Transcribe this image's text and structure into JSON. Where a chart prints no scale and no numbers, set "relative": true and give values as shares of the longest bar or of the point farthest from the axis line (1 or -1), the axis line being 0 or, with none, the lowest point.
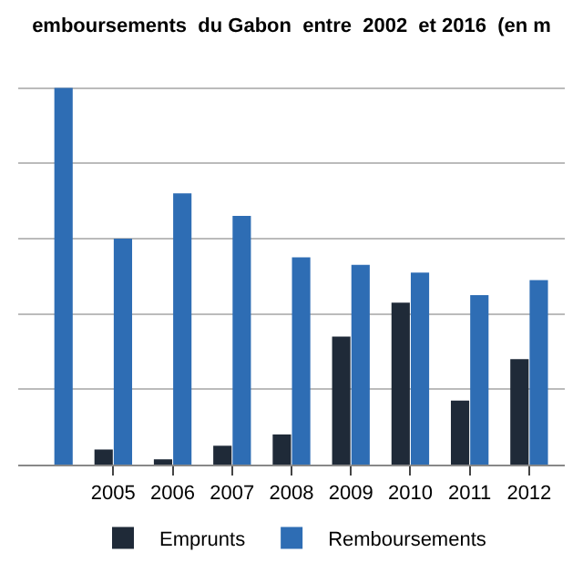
{
  "chart_data": {
    "type": "bar",
    "title": "emboursements  du Gabon  entre  2002  et 2016  (en m",
    "relative": true,
    "categories": [
      null,
      "2005",
      "2006",
      "2007",
      "2008",
      "2009",
      "2010",
      "2011",
      "2012"
    ],
    "series": [
      {
        "name": "Emprunts",
        "color": "#1f2a38",
        "values": [
          null,
          0.04,
          0.014,
          0.05,
          0.08,
          0.34,
          0.43,
          0.17,
          0.28
        ]
      },
      {
        "name": "Remboursements",
        "color": "#2e6db4",
        "values": [
          1,
          0.6,
          0.72,
          0.66,
          0.55,
          0.53,
          0.51,
          0.45,
          0.49
        ]
      }
    ],
    "grid": "y",
    "legend": "bottom"
  }
}
